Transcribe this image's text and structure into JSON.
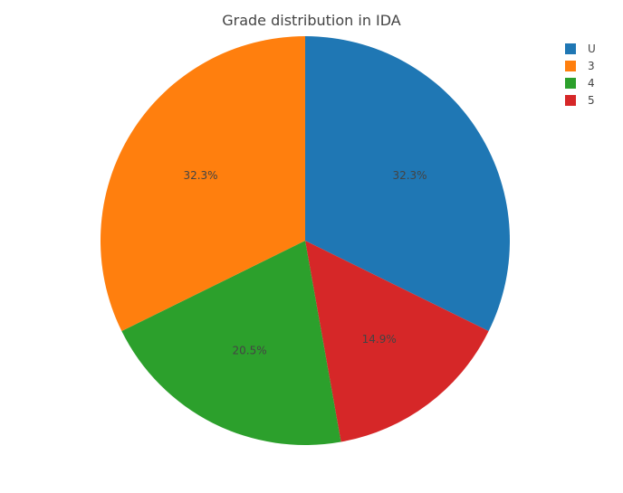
{
  "chart_data": {
    "type": "pie",
    "title": "Grade distribution in IDA",
    "categories": [
      "U",
      "3",
      "4",
      "5"
    ],
    "values": [
      32.3,
      32.3,
      20.5,
      14.9
    ],
    "labels": [
      "32.3%",
      "32.3%",
      "20.5%",
      "14.9%"
    ],
    "colors": [
      "#1f77b4",
      "#ff7f0e",
      "#2ca02c",
      "#d62728"
    ],
    "slice_order": [
      "U",
      "5",
      "4",
      "3"
    ],
    "direction": "clockwise",
    "start": "top",
    "legend": {
      "position": "top-right",
      "entries": [
        "U",
        "3",
        "4",
        "5"
      ]
    }
  }
}
